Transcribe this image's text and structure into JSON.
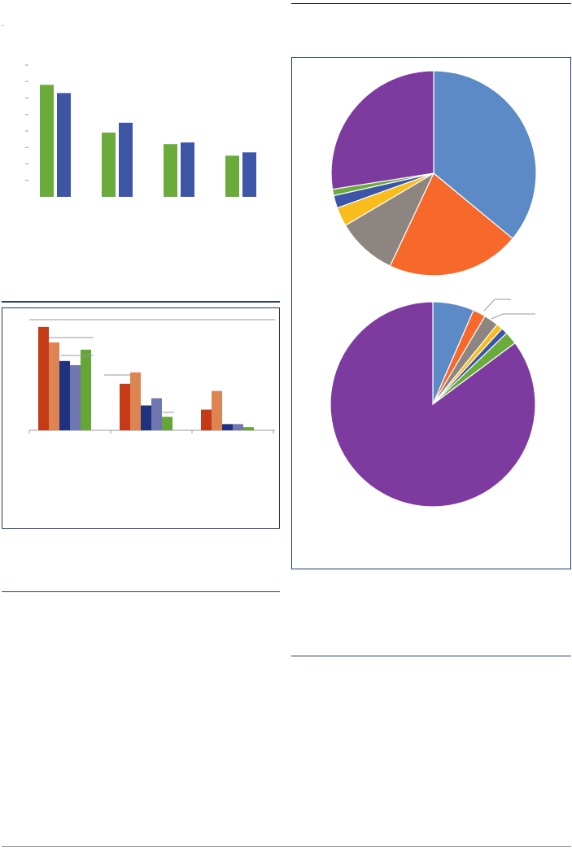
{
  "chart_data": [
    {
      "type": "bar",
      "categories": [
        "",
        "",
        "",
        ""
      ],
      "series": [
        {
          "color": "#6aab3b",
          "values": [
            68,
            39,
            32,
            25
          ]
        },
        {
          "color": "#3c55a4",
          "values": [
            63,
            45,
            33,
            27
          ]
        }
      ],
      "ylim": [
        0,
        80
      ],
      "ytick_count": 8,
      "grid": false
    },
    {
      "type": "bar",
      "categories": [
        "",
        "",
        ""
      ],
      "series": [
        {
          "color": "#c63b17",
          "values": [
            100,
            45,
            20
          ]
        },
        {
          "color": "#dc8552",
          "values": [
            85,
            56,
            38
          ]
        },
        {
          "color": "#1f3280",
          "values": [
            67,
            24,
            6
          ]
        },
        {
          "color": "#6f76b0",
          "values": [
            63,
            31,
            6
          ]
        },
        {
          "color": "#65a637",
          "values": [
            78,
            13,
            3
          ]
        }
      ],
      "ylim": [
        0,
        107
      ],
      "grid": false
    },
    {
      "type": "pie",
      "start_angle_deg": 0,
      "slices": [
        {
          "value": 36.0,
          "color": "#5b8ac6"
        },
        {
          "value": 21.0,
          "color": "#f7692a"
        },
        {
          "value": 9.5,
          "color": "#8c8580"
        },
        {
          "value": 3.0,
          "color": "#f8bd1c"
        },
        {
          "value": 2.0,
          "color": "#3c55a8"
        },
        {
          "value": 1.0,
          "color": "#6aab3b"
        },
        {
          "value": 27.5,
          "color": "#7e3b9f"
        }
      ]
    },
    {
      "type": "pie",
      "start_angle_deg": 0,
      "slices": [
        {
          "value": 6.5,
          "color": "#5b8ac6"
        },
        {
          "value": 2.0,
          "color": "#f7692a"
        },
        {
          "value": 2.3,
          "color": "#8c8580"
        },
        {
          "value": 1.0,
          "color": "#f8bd1c"
        },
        {
          "value": 1.0,
          "color": "#3c55a8"
        },
        {
          "value": 2.0,
          "color": "#6aab3b"
        },
        {
          "value": 85.2,
          "color": "#7e3b9f"
        }
      ]
    }
  ],
  "page": {
    "corner_mark": "."
  }
}
